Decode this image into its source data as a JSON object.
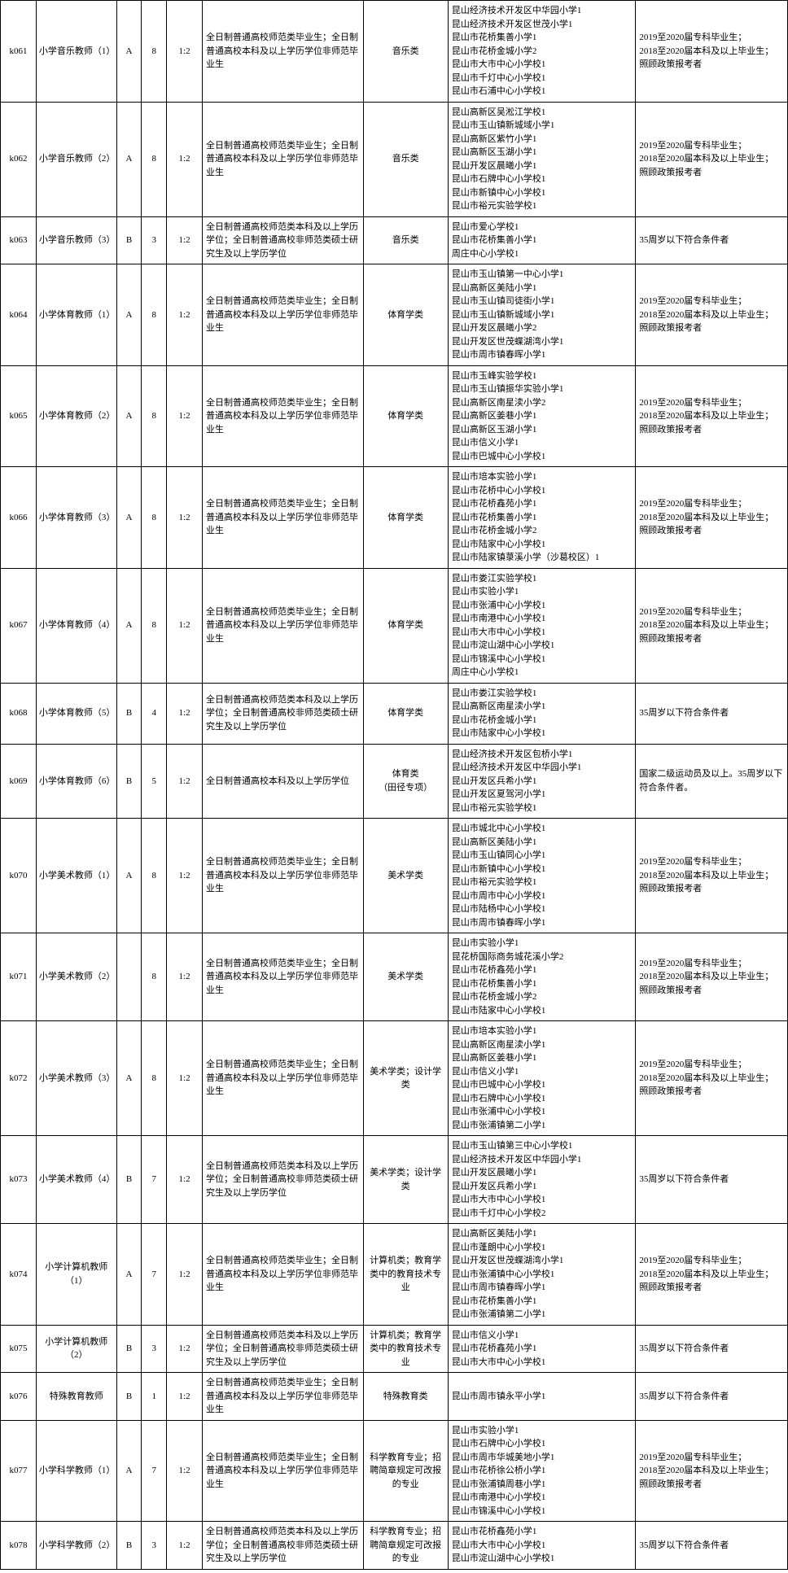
{
  "rows": [
    {
      "code": "k061",
      "position": "小学音乐教师（1）",
      "grade": "A",
      "count": "8",
      "ratio": "1:2",
      "edu": "全日制普通高校师范类毕业生；全日制普通高校本科及以上学历学位非师范毕业生",
      "major": "音乐类",
      "schools": "昆山经济技术开发区中华园小学1\n昆山经济技术开发区世茂小学1\n昆山市花桥集善小学1\n昆山市花桥金城小学2\n昆山市大市中心小学校1\n昆山市千灯中心小学校1\n昆山市石浦中心小学校1",
      "note": "2019至2020届专科毕业生；\n2018至2020届本科及以上毕业生；\n照顾政策报考者"
    },
    {
      "code": "k062",
      "position": "小学音乐教师（2）",
      "grade": "A",
      "count": "8",
      "ratio": "1:2",
      "edu": "全日制普通高校师范类毕业生；全日制普通高校本科及以上学历学位非师范毕业生",
      "major": "音乐类",
      "schools": "昆山高新区吴淞江学校1\n昆山市玉山镇新城域小学1\n昆山高新区紫竹小学1\n昆山高新区玉湖小学1\n昆山开发区晨曦小学1\n昆山市石牌中心小学校1\n昆山市新镇中心小学校1\n昆山市裕元实验学校1",
      "note": "2019至2020届专科毕业生；\n2018至2020届本科及以上毕业生；\n照顾政策报考者"
    },
    {
      "code": "k063",
      "position": "小学音乐教师（3）",
      "grade": "B",
      "count": "3",
      "ratio": "1:2",
      "edu": "全日制普通高校师范类本科及以上学历学位；全日制普通高校非师范类硕士研究生及以上学历学位",
      "major": "音乐类",
      "schools": "昆山市爱心学校1\n昆山市花桥集善小学1\n周庄中心小学校1",
      "note": "35周岁以下符合条件者"
    },
    {
      "code": "k064",
      "position": "小学体育教师（1）",
      "grade": "A",
      "count": "8",
      "ratio": "1:2",
      "edu": "全日制普通高校师范类毕业生；全日制普通高校本科及以上学历学位非师范毕业生",
      "major": "体育学类",
      "schools": "昆山市玉山镇第一中心小学1\n昆山高新区美陆小学1\n昆山市玉山镇司徒街小学1\n昆山市玉山镇新城域小学1\n昆山开发区晨曦小学2\n昆山开发区世茂蝶湖湾小学1\n昆山市周市镇春晖小学1",
      "note": "2019至2020届专科毕业生；\n2018至2020届本科及以上毕业生；\n照顾政策报考者"
    },
    {
      "code": "k065",
      "position": "小学体育教师（2）",
      "grade": "A",
      "count": "8",
      "ratio": "1:2",
      "edu": "全日制普通高校师范类毕业生；全日制普通高校本科及以上学历学位非师范毕业生",
      "major": "体育学类",
      "schools": "昆山市玉峰实验学校1\n昆山市玉山镇振华实验小学1\n昆山高新区南星渎小学2\n昆山高新区姜巷小学1\n昆山高新区玉湖小学1\n昆山市信义小学1\n昆山市巴城中心小学校1",
      "note": "2019至2020届专科毕业生；\n2018至2020届本科及以上毕业生；\n照顾政策报考者"
    },
    {
      "code": "k066",
      "position": "小学体育教师（3）",
      "grade": "A",
      "count": "8",
      "ratio": "1:2",
      "edu": "全日制普通高校师范类毕业生；全日制普通高校本科及以上学历学位非师范毕业生",
      "major": "体育学类",
      "schools": "昆山市培本实验小学1\n昆山市花桥中心小学校1\n昆山市花桥鑫苑小学1\n昆山市花桥集善小学1\n昆山市花桥金城小学2\n昆山市陆家中心小学校1\n昆山市陆家镇菉溪小学（沙葛校区）1",
      "note": "2019至2020届专科毕业生；\n2018至2020届本科及以上毕业生；\n照顾政策报考者"
    },
    {
      "code": "k067",
      "position": "小学体育教师（4）",
      "grade": "A",
      "count": "8",
      "ratio": "1:2",
      "edu": "全日制普通高校师范类毕业生；全日制普通高校本科及以上学历学位非师范毕业生",
      "major": "体育学类",
      "schools": "昆山市娄江实验学校1\n昆山市实验小学1\n昆山市张浦中心小学校1\n昆山市南港中心小学校1\n昆山市大市中心小学校1\n昆山市淀山湖中心小学校1\n昆山市锦溪中心小学校1\n周庄中心小学校1",
      "note": "2019至2020届专科毕业生；\n2018至2020届本科及以上毕业生；\n照顾政策报考者"
    },
    {
      "code": "k068",
      "position": "小学体育教师（5）",
      "grade": "B",
      "count": "4",
      "ratio": "1:2",
      "edu": "全日制普通高校师范类本科及以上学历学位；全日制普通高校非师范类硕士研究生及以上学历学位",
      "major": "体育学类",
      "schools": "昆山市娄江实验学校1\n昆山高新区南星渎小学1\n昆山市花桥金城小学1\n昆山市陆家中心小学校1",
      "note": "35周岁以下符合条件者"
    },
    {
      "code": "k069",
      "position": "小学体育教师（6）",
      "grade": "B",
      "count": "5",
      "ratio": "1:2",
      "edu": "全日制普通高校本科及以上学历学位",
      "major": "体育类\n（田径专项）",
      "schools": "昆山经济技术开发区包桥小学1\n昆山经济技术开发区中华园小学1\n昆山开发区兵希小学1\n昆山开发区夏驾河小学1\n昆山市裕元实验学校1",
      "note": "国家二级运动员及以上。35周岁以下符合条件者。"
    },
    {
      "code": "k070",
      "position": "小学美术教师（1）",
      "grade": "A",
      "count": "8",
      "ratio": "1:2",
      "edu": "全日制普通高校师范类毕业生；全日制普通高校本科及以上学历学位非师范毕业生",
      "major": "美术学类",
      "schools": "昆山市城北中心小学校1\n昆山高新区美陆小学1\n昆山市玉山镇同心小学1\n昆山市新镇中心小学校1\n昆山市裕元实验学校1\n昆山市周市中心小学校1\n昆山市陆杨中心小学校1\n昆山市周市镇春晖小学1",
      "note": "2019至2020届专科毕业生；\n2018至2020届本科及以上毕业生；\n照顾政策报考者"
    },
    {
      "code": "k071",
      "position": "小学美术教师（2）",
      "grade": "",
      "count": "8",
      "ratio": "1:2",
      "edu": "全日制普通高校师范类毕业生；全日制普通高校本科及以上学历学位非师范毕业生",
      "major": "美术学类",
      "schools": "昆山市实验小学1\n昆花桥国际商务城花溪小学2\n昆山市花桥鑫苑小学1\n昆山市花桥集善小学1\n昆山市花桥金城小学2\n昆山市陆家中心小学校1",
      "note": "2019至2020届专科毕业生；\n2018至2020届本科及以上毕业生；\n照顾政策报考者"
    },
    {
      "code": "k072",
      "position": "小学美术教师（3）",
      "grade": "A",
      "count": "8",
      "ratio": "1:2",
      "edu": "全日制普通高校师范类毕业生；全日制普通高校本科及以上学历学位非师范毕业生",
      "major": "美术学类；设计学类",
      "schools": "昆山市培本实验小学1\n昆山高新区南星渎小学1\n昆山高新区姜巷小学1\n昆山市信义小学1\n昆山市巴城中心小学校1\n昆山市石牌中心小学校1\n昆山市张浦中心小学校1\n昆山市张浦镇第二小学1",
      "note": "2019至2020届专科毕业生；\n2018至2020届本科及以上毕业生；\n照顾政策报考者"
    },
    {
      "code": "k073",
      "position": "小学美术教师（4）",
      "grade": "B",
      "count": "7",
      "ratio": "1:2",
      "edu": "全日制普通高校师范类本科及以上学历学位；全日制普通高校非师范类硕士研究生及以上学历学位",
      "major": "美术学类；设计学类",
      "schools": "昆山市玉山镇第三中心小学校1\n昆山经济技术开发区中华园小学1\n昆山开发区晨曦小学1\n昆山开发区兵希小学1\n昆山市大市中心小学校1\n昆山市千灯中心小学校2",
      "note": "35周岁以下符合条件者"
    },
    {
      "code": "k074",
      "position": "小学计算机教师（1）",
      "grade": "A",
      "count": "7",
      "ratio": "1:2",
      "edu": "全日制普通高校师范类毕业生；全日制普通高校本科及以上学历学位非师范毕业生",
      "major": "计算机类；教育学类中的教育技术专业",
      "schools": "昆山高新区美陆小学1\n昆山市蓬朗中心小学校1\n昆山开发区世茂蝶湖湾小学1\n昆山市张浦镇中心小学校1\n昆山市周市镇春晖小学1\n昆山市花桥集善小学1\n昆山市张浦镇第二小学1",
      "note": "2019至2020届专科毕业生；\n2018至2020届本科及以上毕业生；\n照顾政策报考者"
    },
    {
      "code": "k075",
      "position": "小学计算机教师（2）",
      "grade": "B",
      "count": "3",
      "ratio": "1:2",
      "edu": "全日制普通高校师范类本科及以上学历学位；全日制普通高校非师范类硕士研究生及以上学历学位",
      "major": "计算机类；教育学类中的教育技术专业",
      "schools": "昆山市信义小学1\n昆山市花桥鑫苑小学1\n昆山市大市中心小学校1",
      "note": "35周岁以下符合条件者"
    },
    {
      "code": "k076",
      "position": "特殊教育教师",
      "grade": "B",
      "count": "1",
      "ratio": "1:2",
      "edu": "全日制普通高校师范类毕业生；全日制普通高校本科及以上学历学位非师范毕业生",
      "major": "特殊教育类",
      "schools": "昆山市周市镇永平小学1",
      "note": "35周岁以下符合条件者"
    },
    {
      "code": "k077",
      "position": "小学科学教师（1）",
      "grade": "A",
      "count": "7",
      "ratio": "1:2",
      "edu": "全日制普通高校师范类毕业生；全日制普通高校本科及以上学历学位非师范毕业生",
      "major": "科学教育专业；招聘简章规定可改报的专业",
      "schools": "昆山市实验小学1\n昆山市石牌中心小学校1\n昆山市周市华城美地小学1\n昆山市花桥徐公桥小学1\n昆山市张浦镇周巷小学1\n昆山市南港中心小学校1\n昆山市锦溪中心小学校1",
      "note": "2019至2020届专科毕业生；\n2018至2020届本科及以上毕业生；\n照顾政策报考者"
    },
    {
      "code": "k078",
      "position": "小学科学教师（2）",
      "grade": "B",
      "count": "3",
      "ratio": "1:2",
      "edu": "全日制普通高校师范类本科及以上学历学位；全日制普通高校非师范类硕士研究生及以上学历学位",
      "major": "科学教育专业；招聘简章规定可改报的专业",
      "schools": "昆山市花桥鑫苑小学1\n昆山市大市中心小学校1\n昆山市淀山湖中心小学校1",
      "note": "35周岁以下符合条件者"
    }
  ]
}
